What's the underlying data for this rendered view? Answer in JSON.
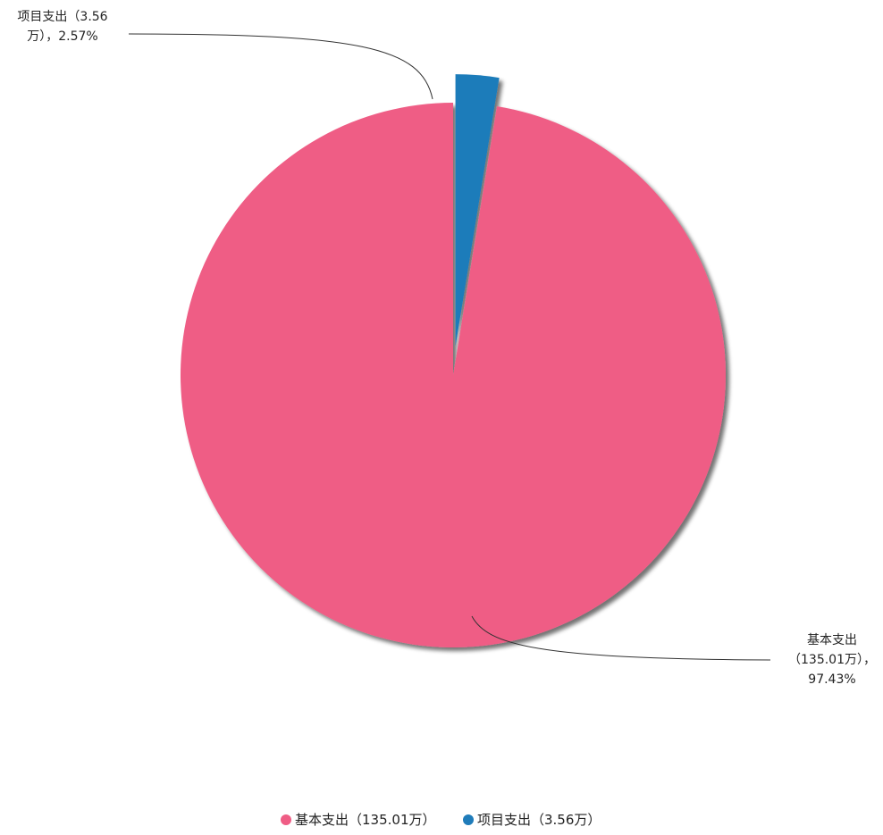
{
  "chart_data": {
    "type": "pie",
    "series": [
      {
        "name": "基本支出",
        "value": 135.01,
        "percent": 97.43,
        "color": "#ef5d85",
        "label_lines": [
          "基本支出",
          "（135.01万），",
          "97.43%"
        ],
        "legend_label": "基本支出（135.01万）"
      },
      {
        "name": "项目支出",
        "value": 3.56,
        "percent": 2.57,
        "color": "#1f7cba",
        "label_lines": [
          "项目支出（3.56",
          "万），2.57%"
        ],
        "legend_label": "项目支出（3.56万）"
      }
    ],
    "legend_position": "bottom-center"
  }
}
